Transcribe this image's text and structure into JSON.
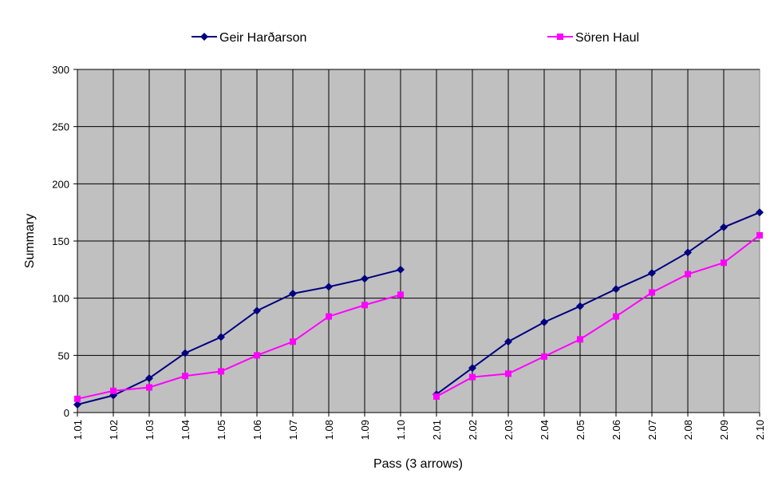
{
  "chart_data": {
    "type": "line",
    "xlabel": "Pass (3 arrows)",
    "ylabel": "Summary",
    "ylim": [
      0,
      300
    ],
    "yticks": [
      "0",
      "50",
      "100",
      "150",
      "200",
      "250",
      "300"
    ],
    "grid": true,
    "legend_placement": "top",
    "plot_background": "#c0c0c0",
    "categories": [
      "1.01",
      "1.02",
      "1.03",
      "1.04",
      "1.05",
      "1.06",
      "1.07",
      "1.08",
      "1.09",
      "1.10",
      "2.01",
      "2.02",
      "2.03",
      "2.04",
      "2.05",
      "2.06",
      "2.07",
      "2.08",
      "2.09",
      "2.10"
    ],
    "series": [
      {
        "name": "Geir Harðarson",
        "color": "#000080",
        "marker": "diamond",
        "values": [
          7,
          15,
          30,
          52,
          66,
          89,
          104,
          110,
          117,
          125,
          16,
          39,
          62,
          79,
          93,
          108,
          122,
          140,
          162,
          175
        ]
      },
      {
        "name": "Sören Haul",
        "color": "#ff00ff",
        "marker": "square",
        "values": [
          12,
          19,
          22,
          32,
          36,
          50,
          62,
          84,
          94,
          103,
          14,
          31,
          34,
          49,
          64,
          84,
          105,
          121,
          131,
          155
        ]
      }
    ]
  }
}
